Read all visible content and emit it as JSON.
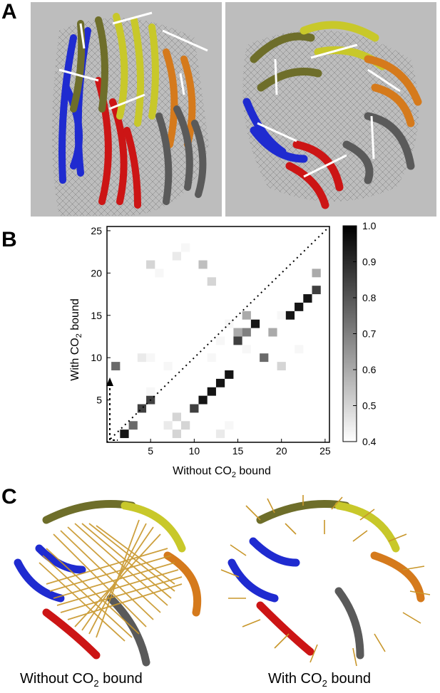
{
  "figure": {
    "panels": [
      "A",
      "B",
      "C"
    ]
  },
  "panel_b": {
    "xlabel": "Without CO",
    "xlabel_sub": "2",
    "xlabel_tail": " bound",
    "ylabel": "With CO",
    "ylabel_sub": "2",
    "ylabel_tail": " bound",
    "annotation_arrow": "dotted arrow from diagonal at 1 up to 9"
  },
  "panel_c": {
    "captions": [
      {
        "lead": "Without CO",
        "sub": "2",
        "tail": " bound"
      },
      {
        "lead": "With CO",
        "sub": "2",
        "tail": " bound"
      }
    ]
  },
  "colors": {
    "blue": "#1f2bd0",
    "red": "#cc1515",
    "olive": "#6e6e2a",
    "yellow": "#c8c82a",
    "orange": "#d57a1c",
    "gray": "#5a5a5a",
    "arrow": "#c8962a"
  },
  "chart_data": {
    "type": "heatmap",
    "xlim": [
      0,
      25.5
    ],
    "ylim": [
      0,
      25.5
    ],
    "xticks": [
      5,
      10,
      15,
      20,
      25
    ],
    "yticks": [
      5,
      10,
      15,
      20,
      25
    ],
    "colorbar": {
      "min": 0.4,
      "max": 1.0,
      "ticks": [
        "1.0",
        "0.9",
        "0.8",
        "0.7",
        "0.6",
        "0.5",
        "0.4"
      ]
    },
    "diagonal": "dotted",
    "cells": [
      [
        2,
        1,
        0.95
      ],
      [
        3,
        2,
        0.75
      ],
      [
        4,
        4,
        0.85
      ],
      [
        5,
        5,
        0.85
      ],
      [
        5,
        6,
        0.42
      ],
      [
        10,
        4,
        0.85
      ],
      [
        11,
        5,
        0.95
      ],
      [
        12,
        6,
        0.95
      ],
      [
        13,
        7,
        0.95
      ],
      [
        14,
        8,
        0.95
      ],
      [
        8,
        1,
        0.5
      ],
      [
        8,
        3,
        0.5
      ],
      [
        9,
        2,
        0.5
      ],
      [
        7,
        2,
        0.45
      ],
      [
        13,
        1,
        0.45
      ],
      [
        14,
        2,
        0.42
      ],
      [
        1,
        9,
        0.75
      ],
      [
        4,
        10,
        0.45
      ],
      [
        5,
        10,
        0.42
      ],
      [
        7,
        9,
        0.42
      ],
      [
        12,
        10,
        0.42
      ],
      [
        15,
        12,
        0.85
      ],
      [
        15,
        13,
        0.6
      ],
      [
        16,
        13,
        0.7
      ],
      [
        16,
        15,
        0.6
      ],
      [
        16,
        11,
        0.42
      ],
      [
        17,
        14,
        0.95
      ],
      [
        13,
        12,
        0.42
      ],
      [
        14,
        14,
        0.42
      ],
      [
        18,
        10,
        0.75
      ],
      [
        19,
        13,
        0.6
      ],
      [
        20,
        9,
        0.5
      ],
      [
        20,
        15,
        0.42
      ],
      [
        21,
        15,
        0.95
      ],
      [
        22,
        16,
        0.95
      ],
      [
        22,
        11,
        0.42
      ],
      [
        23,
        17,
        0.95
      ],
      [
        24,
        18,
        0.85
      ],
      [
        24,
        20,
        0.6
      ],
      [
        5,
        21,
        0.5
      ],
      [
        6,
        20,
        0.42
      ],
      [
        8,
        22,
        0.45
      ],
      [
        9,
        23,
        0.42
      ],
      [
        11,
        21,
        0.55
      ],
      [
        12,
        19,
        0.5
      ]
    ]
  }
}
